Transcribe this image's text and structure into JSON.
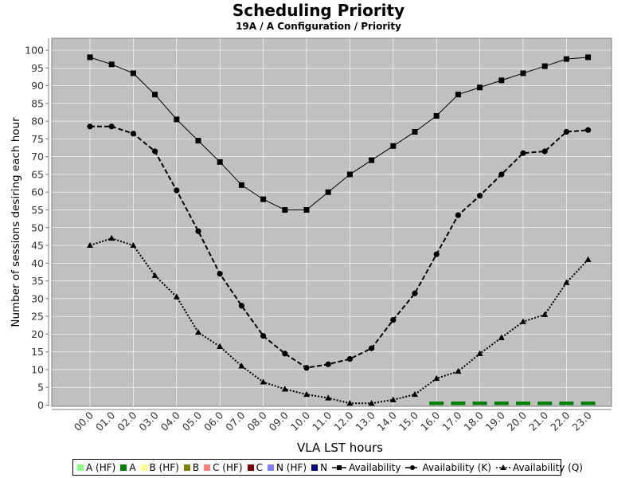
{
  "chart_data": {
    "type": "line",
    "title": "Scheduling Priority",
    "subtitle": "19A  /  A Configuration  /   Priority",
    "xlabel": "VLA LST hours",
    "ylabel": "Number of sessions desiring each hour",
    "ylim": [
      0,
      102
    ],
    "yticks": [
      0,
      5,
      10,
      15,
      20,
      25,
      30,
      35,
      40,
      45,
      50,
      55,
      60,
      65,
      70,
      75,
      80,
      85,
      90,
      95,
      100
    ],
    "grid": true,
    "legend_position": "bottom",
    "plot_background": "#c0c0c0",
    "categories": [
      "00.0",
      "01.0",
      "02.0",
      "03.0",
      "04.0",
      "05.0",
      "06.0",
      "07.0",
      "08.0",
      "09.0",
      "10.0",
      "11.0",
      "12.0",
      "13.0",
      "14.0",
      "15.0",
      "16.0",
      "17.0",
      "18.0",
      "19.0",
      "20.0",
      "21.0",
      "22.0",
      "23.0"
    ],
    "bar_series": [
      {
        "name": "A (HF)",
        "color": "#80ff80",
        "values": [
          0,
          0,
          0,
          0,
          0,
          0,
          0,
          0,
          0,
          0,
          0,
          0,
          0,
          0,
          0,
          0,
          0,
          0,
          0,
          0,
          0,
          0,
          0,
          0
        ]
      },
      {
        "name": "A",
        "color": "#008000",
        "values": [
          0,
          0,
          0,
          0,
          0,
          0,
          0,
          0,
          0,
          0,
          0,
          0,
          0,
          0,
          0,
          0,
          1,
          1,
          1,
          1,
          1,
          1,
          1,
          1
        ]
      },
      {
        "name": "B (HF)",
        "color": "#ffff80",
        "values": [
          0,
          0,
          0,
          0,
          0,
          0,
          0,
          0,
          0,
          0,
          0,
          0,
          0,
          0,
          0,
          0,
          0,
          0,
          0,
          0,
          0,
          0,
          0,
          0
        ]
      },
      {
        "name": "B",
        "color": "#808000",
        "values": [
          0,
          0,
          0,
          0,
          0,
          0,
          0,
          0,
          0,
          0,
          0,
          0,
          0,
          0,
          0,
          0,
          0,
          0,
          0,
          0,
          0,
          0,
          0,
          0
        ]
      },
      {
        "name": "C (HF)",
        "color": "#ff8080",
        "values": [
          0,
          0,
          0,
          0,
          0,
          0,
          0,
          0,
          0,
          0,
          0,
          0,
          0,
          0,
          0,
          0,
          0,
          0,
          0,
          0,
          0,
          0,
          0,
          0
        ]
      },
      {
        "name": "C",
        "color": "#800000",
        "values": [
          0,
          0,
          0,
          0,
          0,
          0,
          0,
          0,
          0,
          0,
          0,
          0,
          0,
          0,
          0,
          0,
          0,
          0,
          0,
          0,
          0,
          0,
          0,
          0
        ]
      },
      {
        "name": "N (HF)",
        "color": "#8080ff",
        "values": [
          0,
          0,
          0,
          0,
          0,
          0,
          0,
          0,
          0,
          0,
          0,
          0,
          0,
          0,
          0,
          0,
          0,
          0,
          0,
          0,
          0,
          0,
          0,
          0
        ]
      },
      {
        "name": "N",
        "color": "#000080",
        "values": [
          0,
          0,
          0,
          0,
          0,
          0,
          0,
          0,
          0,
          0,
          0,
          0,
          0,
          0,
          0,
          0,
          0,
          0,
          0,
          0,
          0,
          0,
          0,
          0
        ]
      }
    ],
    "line_series": [
      {
        "name": "Availability",
        "marker": "square",
        "dash": "solid",
        "values": [
          98,
          96,
          93.5,
          87.5,
          80.5,
          74.5,
          68.5,
          62,
          58,
          55,
          55,
          60,
          65,
          69,
          73,
          77,
          81.5,
          87.5,
          89.5,
          91.5,
          93.5,
          95.5,
          97.5,
          98
        ]
      },
      {
        "name": "Availability (K)",
        "marker": "circle",
        "dash": "dashed",
        "values": [
          78.5,
          78.5,
          76.5,
          71.5,
          60.5,
          49,
          37,
          28,
          19.5,
          14.5,
          10.5,
          11.5,
          13,
          16,
          24,
          31.5,
          42.5,
          53.5,
          59,
          65,
          71,
          71.5,
          77,
          77.5
        ]
      },
      {
        "name": "Availability (Q)",
        "marker": "triangle",
        "dash": "dotted",
        "values": [
          45,
          47,
          45,
          36.5,
          30.5,
          20.5,
          16.5,
          11,
          6.5,
          4.5,
          3,
          2,
          0.5,
          0.5,
          1.5,
          3,
          7.5,
          9.5,
          14.5,
          19,
          23.5,
          25.5,
          34.5,
          41
        ]
      }
    ]
  }
}
